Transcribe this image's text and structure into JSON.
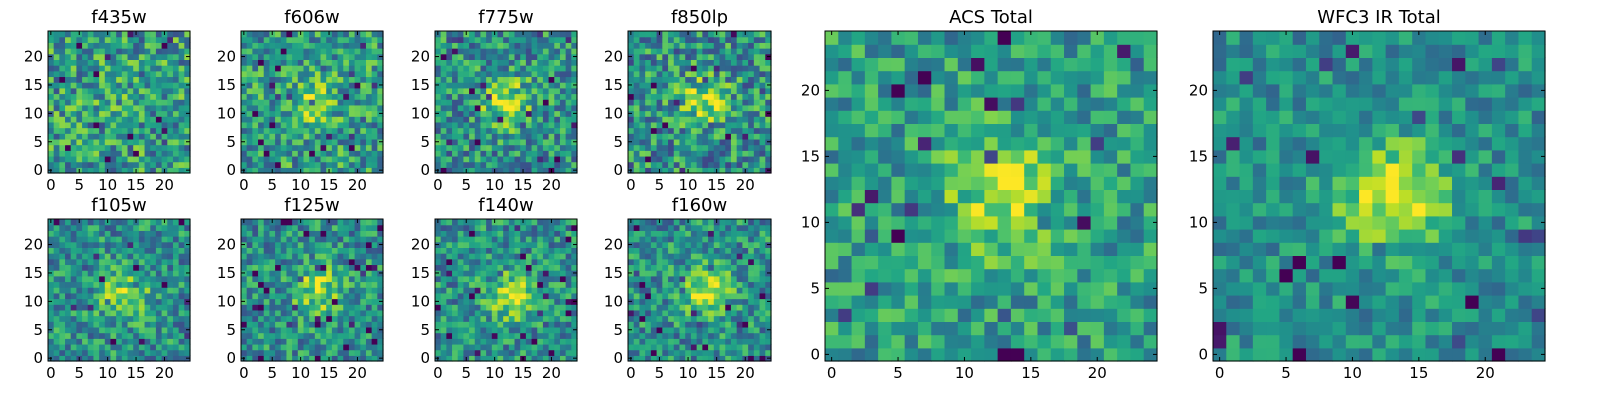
{
  "figure": {
    "description_visible": false
  },
  "colormap": {
    "name": "viridis",
    "low": "#440154",
    "mid": "#21908d",
    "high": "#fde725"
  },
  "chart_data": [
    {
      "type": "heatmap",
      "title": "f435w",
      "size": 25,
      "xticks": [
        0,
        5,
        10,
        15,
        20
      ],
      "yticks": [
        0,
        5,
        10,
        15,
        20
      ],
      "xlim": [
        0,
        25
      ],
      "ylim": [
        0,
        25
      ],
      "peak": {
        "x": 12,
        "y": 12,
        "strength": 0.05
      },
      "noise": 0.3,
      "base": 0.55,
      "seed": 11
    },
    {
      "type": "heatmap",
      "title": "f606w",
      "size": 25,
      "xticks": [
        0,
        5,
        10,
        15,
        20
      ],
      "yticks": [
        0,
        5,
        10,
        15,
        20
      ],
      "xlim": [
        0,
        25
      ],
      "ylim": [
        0,
        25
      ],
      "peak": {
        "x": 12,
        "y": 12,
        "strength": 0.25
      },
      "noise": 0.28,
      "base": 0.55,
      "seed": 23
    },
    {
      "type": "heatmap",
      "title": "f775w",
      "size": 25,
      "xticks": [
        0,
        5,
        10,
        15,
        20
      ],
      "yticks": [
        0,
        5,
        10,
        15,
        20
      ],
      "xlim": [
        0,
        25
      ],
      "ylim": [
        0,
        25
      ],
      "peak": {
        "x": 12,
        "y": 12,
        "strength": 0.4
      },
      "noise": 0.28,
      "base": 0.5,
      "seed": 37
    },
    {
      "type": "heatmap",
      "title": "f850lp",
      "size": 25,
      "xticks": [
        0,
        5,
        10,
        15,
        20
      ],
      "yticks": [
        0,
        5,
        10,
        15,
        20
      ],
      "xlim": [
        0,
        25
      ],
      "ylim": [
        0,
        25
      ],
      "peak": {
        "x": 13,
        "y": 12,
        "strength": 0.35
      },
      "noise": 0.3,
      "base": 0.5,
      "seed": 41
    },
    {
      "type": "heatmap",
      "title": "f105w",
      "size": 25,
      "xticks": [
        0,
        5,
        10,
        15,
        20
      ],
      "yticks": [
        0,
        5,
        10,
        15,
        20
      ],
      "xlim": [
        0,
        25
      ],
      "ylim": [
        0,
        25
      ],
      "peak": {
        "x": 13,
        "y": 11,
        "strength": 0.35
      },
      "noise": 0.25,
      "base": 0.5,
      "seed": 53
    },
    {
      "type": "heatmap",
      "title": "f125w",
      "size": 25,
      "xticks": [
        0,
        5,
        10,
        15,
        20
      ],
      "yticks": [
        0,
        5,
        10,
        15,
        20
      ],
      "xlim": [
        0,
        25
      ],
      "ylim": [
        0,
        25
      ],
      "peak": {
        "x": 13,
        "y": 12,
        "strength": 0.35
      },
      "noise": 0.25,
      "base": 0.5,
      "seed": 67
    },
    {
      "type": "heatmap",
      "title": "f140w",
      "size": 25,
      "xticks": [
        0,
        5,
        10,
        15,
        20
      ],
      "yticks": [
        0,
        5,
        10,
        15,
        20
      ],
      "xlim": [
        0,
        25
      ],
      "ylim": [
        0,
        25
      ],
      "peak": {
        "x": 13,
        "y": 11,
        "strength": 0.35
      },
      "noise": 0.25,
      "base": 0.5,
      "seed": 71
    },
    {
      "type": "heatmap",
      "title": "f160w",
      "size": 25,
      "xticks": [
        0,
        5,
        10,
        15,
        20
      ],
      "yticks": [
        0,
        5,
        10,
        15,
        20
      ],
      "xlim": [
        0,
        25
      ],
      "ylim": [
        0,
        25
      ],
      "peak": {
        "x": 13,
        "y": 12,
        "strength": 0.4
      },
      "noise": 0.25,
      "base": 0.5,
      "seed": 83
    },
    {
      "type": "heatmap",
      "title": "ACS Total",
      "size": 25,
      "xticks": [
        0,
        5,
        10,
        15,
        20
      ],
      "yticks": [
        0,
        5,
        10,
        15,
        20
      ],
      "xlim": [
        0,
        25
      ],
      "ylim": [
        0,
        25
      ],
      "peak": {
        "x": 13,
        "y": 12,
        "strength": 0.35
      },
      "noise": 0.22,
      "base": 0.55,
      "seed": 97
    },
    {
      "type": "heatmap",
      "title": "WFC3 IR Total",
      "size": 25,
      "xticks": [
        0,
        5,
        10,
        15,
        20
      ],
      "yticks": [
        0,
        5,
        10,
        15,
        20
      ],
      "xlim": [
        0,
        25
      ],
      "ylim": [
        0,
        25
      ],
      "peak": {
        "x": 13,
        "y": 12,
        "strength": 0.45
      },
      "noise": 0.18,
      "base": 0.5,
      "seed": 101
    }
  ]
}
